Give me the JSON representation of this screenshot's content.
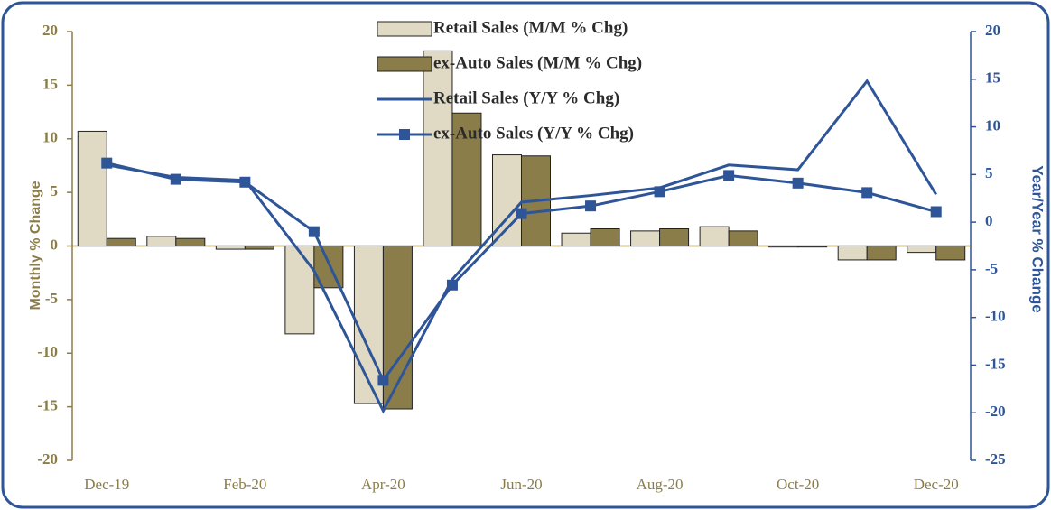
{
  "chart_data": {
    "type": "bar",
    "categories": [
      "Dec-19",
      null,
      "Feb-20",
      null,
      "Apr-20",
      null,
      "Jun-20",
      null,
      "Aug-20",
      null,
      "Oct-20",
      null,
      "Dec-20"
    ],
    "y_label": "Monthly % Change",
    "y2_label": "Year/Year % Change",
    "ylim": [
      -20,
      20
    ],
    "yticks": [
      -20,
      -15,
      -10,
      -5,
      0,
      5,
      10,
      15,
      20
    ],
    "y2lim": [
      -25,
      20
    ],
    "y2ticks": [
      -25,
      -20,
      -15,
      -10,
      -5,
      0,
      5,
      10,
      15,
      20
    ],
    "legend": "top",
    "series": [
      {
        "name": "Retail Sales (M/M % Chg)",
        "type": "bar",
        "color": "#e0dac5",
        "values": [
          10.7,
          0.9,
          -0.3,
          -8.2,
          -14.7,
          18.2,
          8.5,
          1.2,
          1.4,
          1.8,
          -0.1,
          -1.3,
          -0.6
        ]
      },
      {
        "name": "ex-Auto Sales (M/M % Chg)",
        "type": "bar",
        "color": "#8b7d4a",
        "values": [
          0.7,
          0.7,
          -0.3,
          -3.9,
          -15.2,
          12.4,
          8.4,
          1.6,
          1.6,
          1.4,
          -0.1,
          -1.3,
          -1.3
        ]
      },
      {
        "name": "Retail Sales (Y/Y % Chg)",
        "type": "line",
        "axis": "y2",
        "color": "#2e5597",
        "values": [
          6.0,
          4.7,
          4.4,
          -5.1,
          -19.8,
          -6.0,
          2.1,
          2.8,
          3.6,
          6.0,
          5.5,
          14.8,
          2.9
        ]
      },
      {
        "name": "ex-Auto Sales (Y/Y % Chg)",
        "type": "line",
        "marker": "square",
        "axis": "y2",
        "color": "#2e5597",
        "values": [
          6.2,
          4.5,
          4.2,
          -1.0,
          -16.6,
          -6.6,
          0.9,
          1.7,
          3.2,
          4.9,
          4.1,
          3.1,
          1.1
        ]
      }
    ]
  }
}
